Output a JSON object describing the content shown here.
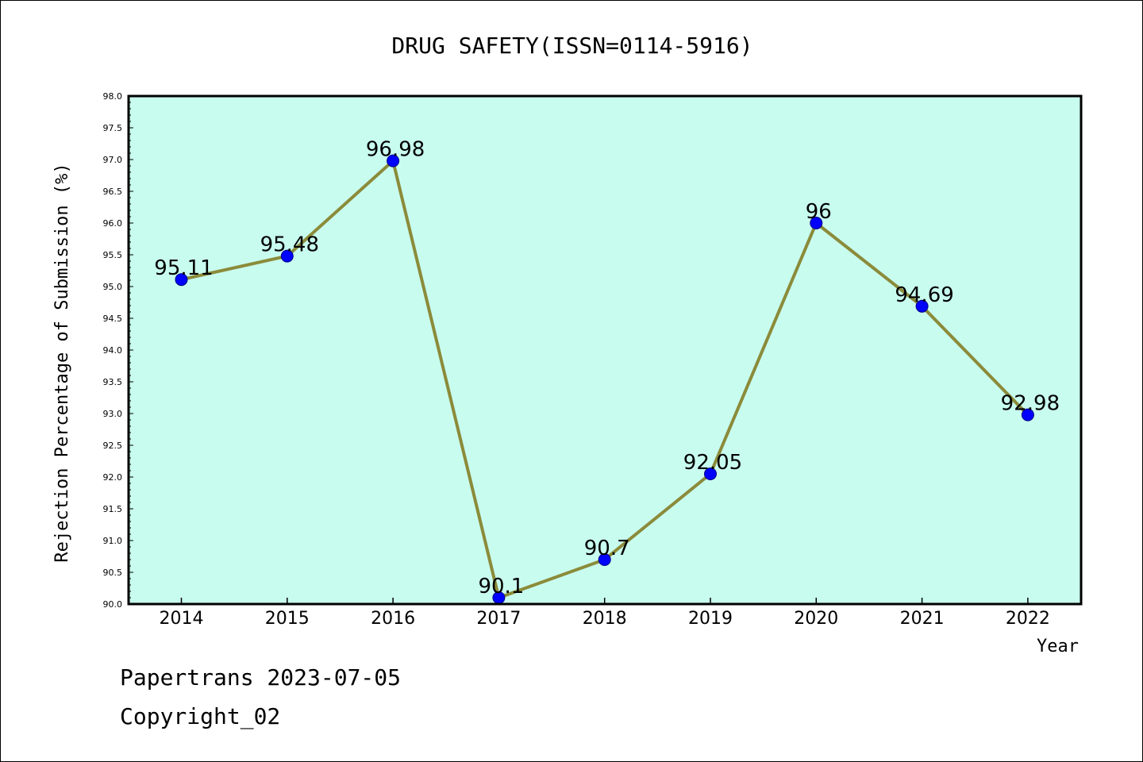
{
  "chart_data": {
    "type": "line",
    "title": "DRUG SAFETY(ISSN=0114-5916)",
    "xlabel": "Year",
    "ylabel": "Rejection Percentage of Submission (%)",
    "categories": [
      "2014",
      "2015",
      "2016",
      "2017",
      "2018",
      "2019",
      "2020",
      "2021",
      "2022"
    ],
    "values": [
      95.11,
      95.48,
      96.98,
      90.1,
      90.7,
      92.05,
      96,
      94.69,
      92.98
    ],
    "data_labels": [
      "95.11",
      "95.48",
      "96.98",
      "90.1",
      "90.7",
      "92.05",
      "96",
      "94.69",
      "92.98"
    ],
    "ylim": [
      90.0,
      98.0
    ],
    "yticks": [
      "90.0",
      "90.5",
      "91.0",
      "91.5",
      "92.0",
      "92.5",
      "93.0",
      "93.5",
      "94.0",
      "94.5",
      "95.0",
      "95.5",
      "96.0",
      "96.5",
      "97.0",
      "97.5",
      "98.0"
    ],
    "grid": false,
    "colors": {
      "plot_background": "#c8fcef",
      "line": "#8b8b3a",
      "marker": "#0000ff"
    }
  },
  "footer": {
    "line1": "Papertrans 2023-07-05",
    "line2": "Copyright_02"
  }
}
